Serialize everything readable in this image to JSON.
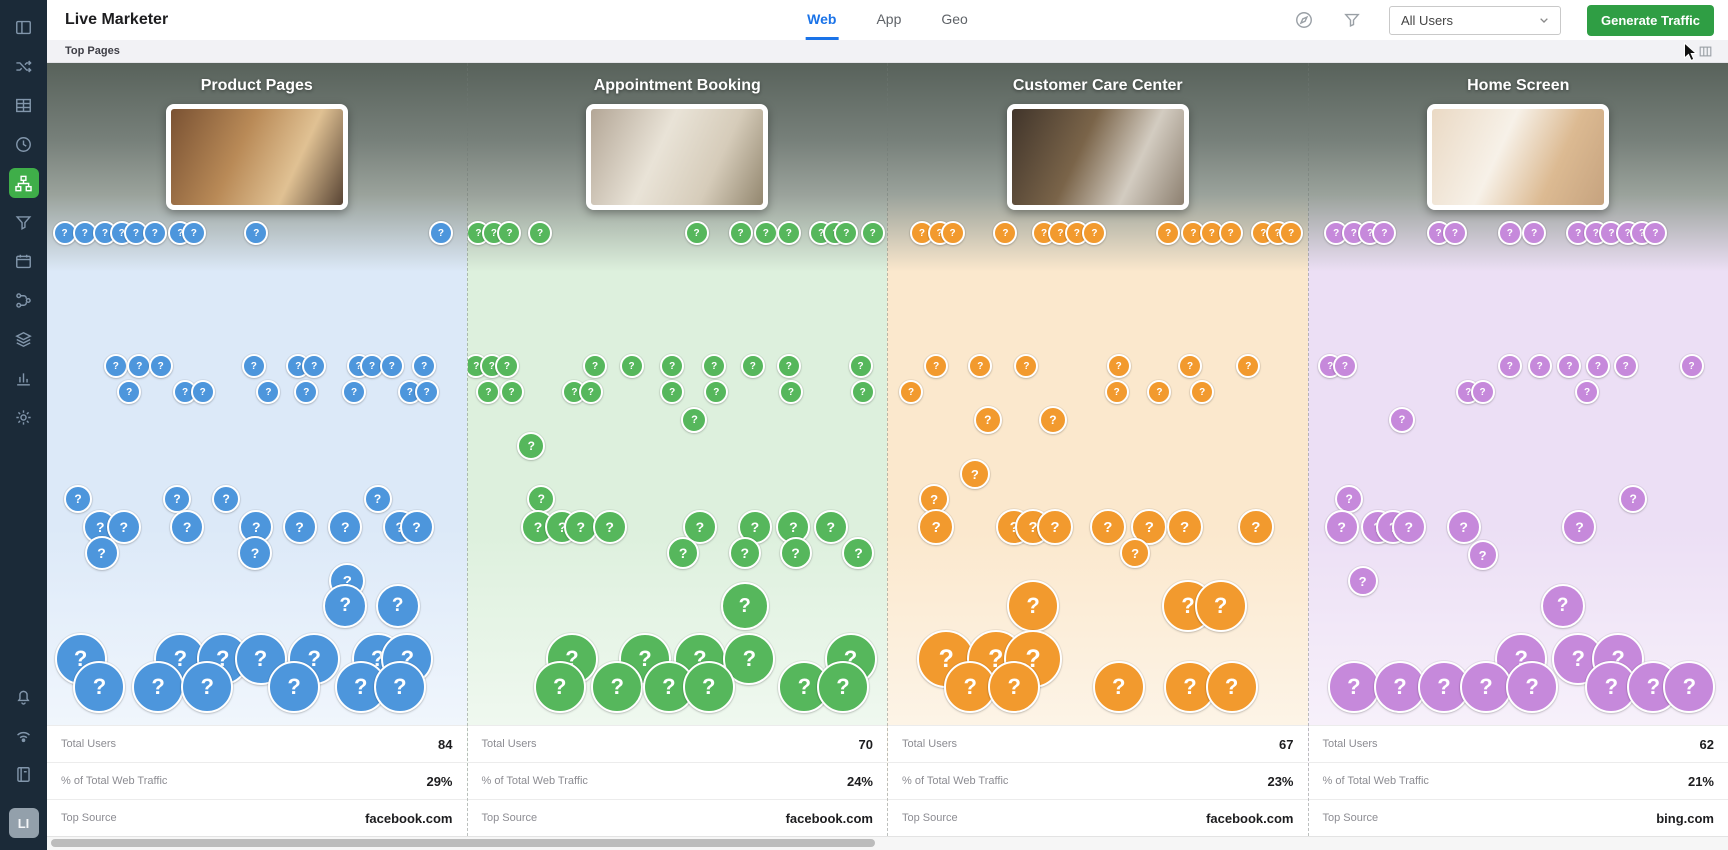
{
  "app": {
    "title": "Live Marketer"
  },
  "topbar": {
    "tabs": [
      {
        "id": "web",
        "label": "Web",
        "active": true
      },
      {
        "id": "app",
        "label": "App",
        "active": false
      },
      {
        "id": "geo",
        "label": "Geo",
        "active": false
      }
    ],
    "audience_dropdown": {
      "value": "All Users"
    },
    "generate_button_label": "Generate Traffic"
  },
  "subheader": {
    "title": "Top Pages"
  },
  "sidebar": {
    "logo_label": "LI",
    "items": [
      {
        "id": "dashboard",
        "icon": "panels",
        "active": false
      },
      {
        "id": "ab-testing",
        "icon": "shuffle",
        "active": false
      },
      {
        "id": "tables",
        "icon": "grid",
        "active": false
      },
      {
        "id": "realtime",
        "icon": "clock",
        "active": false
      },
      {
        "id": "journeys",
        "icon": "sitemap",
        "active": true
      },
      {
        "id": "segments",
        "icon": "funnel",
        "active": false
      },
      {
        "id": "calendar",
        "icon": "calendar",
        "active": false
      },
      {
        "id": "flows",
        "icon": "flow",
        "active": false
      },
      {
        "id": "layers",
        "icon": "layers",
        "active": false
      },
      {
        "id": "analytics",
        "icon": "chart",
        "active": false
      },
      {
        "id": "settings",
        "icon": "gear",
        "active": false
      }
    ],
    "footer_items": [
      {
        "id": "notifications",
        "icon": "bell"
      },
      {
        "id": "connectivity",
        "icon": "signal"
      },
      {
        "id": "directory",
        "icon": "book"
      }
    ]
  },
  "stats_labels": {
    "total_users": "Total Users",
    "traffic": "% of Total Web Traffic",
    "top_source": "Top Source"
  },
  "bubble_glyph": "?",
  "columns": [
    {
      "id": "product-pages",
      "title": "Product Pages",
      "color": "#4D96DC",
      "tint": "#dce9f8",
      "tint_light": "#f2f7fd",
      "preview_colors": [
        "#7a5233",
        "#b98a57",
        "#e0c193",
        "#584434"
      ],
      "stats": {
        "total_users": "84",
        "traffic": "29%",
        "top_source": "facebook.com"
      },
      "bubbles": [
        [
          4.2,
          170,
          12
        ],
        [
          9,
          170,
          12
        ],
        [
          13.8,
          170,
          12
        ],
        [
          17.8,
          170,
          12
        ],
        [
          21.2,
          170,
          12
        ],
        [
          25.7,
          170,
          12
        ],
        [
          31.8,
          170,
          12
        ],
        [
          35,
          170,
          12
        ],
        [
          49.9,
          170,
          12
        ],
        [
          93.9,
          170,
          12
        ],
        [
          16.4,
          303,
          12
        ],
        [
          22,
          303,
          12
        ],
        [
          27.1,
          303,
          12
        ],
        [
          49.3,
          303,
          12
        ],
        [
          59.9,
          303,
          12
        ],
        [
          63.7,
          303,
          12
        ],
        [
          74.3,
          303,
          12
        ],
        [
          77.5,
          303,
          12
        ],
        [
          82.2,
          303,
          12
        ],
        [
          89.9,
          303,
          12
        ],
        [
          19.6,
          329,
          12
        ],
        [
          32.9,
          329,
          12
        ],
        [
          37.1,
          329,
          12
        ],
        [
          52.8,
          329,
          12
        ],
        [
          61.8,
          329,
          12
        ],
        [
          73.2,
          329,
          12
        ],
        [
          86.5,
          329,
          12
        ],
        [
          90.5,
          329,
          12
        ],
        [
          7.4,
          436,
          14
        ],
        [
          31,
          436,
          14
        ],
        [
          42.7,
          436,
          14
        ],
        [
          78.8,
          436,
          14
        ],
        [
          12.7,
          464,
          17
        ],
        [
          18.3,
          464,
          17
        ],
        [
          33.4,
          464,
          17
        ],
        [
          49.9,
          464,
          17
        ],
        [
          60.2,
          464,
          17
        ],
        [
          71.1,
          464,
          17
        ],
        [
          84.1,
          464,
          17
        ],
        [
          88.1,
          464,
          17
        ],
        [
          13,
          490,
          17
        ],
        [
          49.6,
          490,
          17
        ],
        [
          71.6,
          518,
          18
        ],
        [
          71.1,
          543,
          22
        ],
        [
          83.6,
          543,
          22
        ],
        [
          8,
          596,
          26
        ],
        [
          31.8,
          596,
          26
        ],
        [
          41.9,
          596,
          26
        ],
        [
          50.9,
          596,
          26
        ],
        [
          63.7,
          596,
          26
        ],
        [
          78.8,
          596,
          26
        ],
        [
          85.9,
          596,
          26
        ],
        [
          12.5,
          624,
          26
        ],
        [
          26.5,
          624,
          26
        ],
        [
          38.2,
          624,
          26
        ],
        [
          58.9,
          624,
          26
        ],
        [
          74.8,
          624,
          26
        ],
        [
          84.1,
          624,
          26
        ]
      ]
    },
    {
      "id": "appointment-booking",
      "title": "Appointment Booking",
      "color": "#56B75C",
      "tint": "#ddf0dd",
      "tint_light": "#f1f9f1",
      "preview_colors": [
        "#b3a696",
        "#e9e3d7",
        "#d6ccba",
        "#93876f"
      ],
      "stats": {
        "total_users": "70",
        "traffic": "24%",
        "top_source": "facebook.com"
      },
      "bubbles": [
        [
          2.6,
          170,
          12
        ],
        [
          6.3,
          170,
          12
        ],
        [
          10,
          170,
          12
        ],
        [
          17.3,
          170,
          12
        ],
        [
          54.6,
          170,
          12
        ],
        [
          65.1,
          170,
          12
        ],
        [
          71.1,
          170,
          12
        ],
        [
          76.6,
          170,
          12
        ],
        [
          84.3,
          170,
          12
        ],
        [
          87.7,
          170,
          12
        ],
        [
          90.3,
          170,
          12
        ],
        [
          96.6,
          170,
          12
        ],
        [
          2.1,
          303,
          12
        ],
        [
          5.8,
          303,
          12
        ],
        [
          9.4,
          303,
          12
        ],
        [
          30.4,
          303,
          12
        ],
        [
          39.1,
          303,
          12
        ],
        [
          48.8,
          303,
          12
        ],
        [
          58.8,
          303,
          12
        ],
        [
          68,
          303,
          12
        ],
        [
          76.6,
          303,
          12
        ],
        [
          93.7,
          303,
          12
        ],
        [
          5,
          329,
          12
        ],
        [
          10.5,
          329,
          12
        ],
        [
          25.5,
          329,
          12
        ],
        [
          29.4,
          329,
          12
        ],
        [
          48.8,
          329,
          12
        ],
        [
          59.3,
          329,
          12
        ],
        [
          77.1,
          329,
          12
        ],
        [
          94.2,
          329,
          12
        ],
        [
          54.1,
          357,
          13
        ],
        [
          15.2,
          383,
          14
        ],
        [
          17.6,
          436,
          14
        ],
        [
          16.8,
          464,
          17
        ],
        [
          22.6,
          464,
          17
        ],
        [
          27,
          464,
          17
        ],
        [
          33.9,
          464,
          17
        ],
        [
          55.4,
          464,
          17
        ],
        [
          68.5,
          464,
          17
        ],
        [
          77.7,
          464,
          17
        ],
        [
          86.6,
          464,
          17
        ],
        [
          51.4,
          490,
          16
        ],
        [
          66.1,
          490,
          16
        ],
        [
          78.2,
          490,
          16
        ],
        [
          93.2,
          490,
          16
        ],
        [
          66.1,
          543,
          24
        ],
        [
          24.9,
          596,
          26
        ],
        [
          42.3,
          596,
          26
        ],
        [
          55.4,
          596,
          26
        ],
        [
          67.2,
          596,
          26
        ],
        [
          91.3,
          596,
          26
        ],
        [
          22,
          624,
          26
        ],
        [
          35.7,
          624,
          26
        ],
        [
          48,
          624,
          26
        ],
        [
          57.5,
          624,
          26
        ],
        [
          80.3,
          624,
          26
        ],
        [
          89.5,
          624,
          26
        ]
      ]
    },
    {
      "id": "customer-care-center",
      "title": "Customer Care Center",
      "color": "#F29A2E",
      "tint": "#fbe8cd",
      "tint_light": "#fdf5e9",
      "preview_colors": [
        "#41352b",
        "#7a6449",
        "#d3ccc1",
        "#8d8070"
      ],
      "stats": {
        "total_users": "67",
        "traffic": "23%",
        "top_source": "facebook.com"
      },
      "bubbles": [
        [
          8.1,
          170,
          12
        ],
        [
          12.3,
          170,
          12
        ],
        [
          15.4,
          170,
          12
        ],
        [
          28,
          170,
          12
        ],
        [
          37.2,
          170,
          12
        ],
        [
          41.1,
          170,
          12
        ],
        [
          45,
          170,
          12
        ],
        [
          49.2,
          170,
          12
        ],
        [
          66.8,
          170,
          12
        ],
        [
          72.8,
          170,
          12
        ],
        [
          77.2,
          170,
          12
        ],
        [
          81.7,
          170,
          12
        ],
        [
          89.5,
          170,
          12
        ],
        [
          92.9,
          170,
          12
        ],
        [
          96.1,
          170,
          12
        ],
        [
          11.5,
          303,
          12
        ],
        [
          22,
          303,
          12
        ],
        [
          33,
          303,
          12
        ],
        [
          55,
          303,
          12
        ],
        [
          72,
          303,
          12
        ],
        [
          85.9,
          303,
          12
        ],
        [
          5.5,
          329,
          12
        ],
        [
          54.5,
          329,
          12
        ],
        [
          64.7,
          329,
          12
        ],
        [
          74.9,
          329,
          12
        ],
        [
          23.8,
          357,
          14
        ],
        [
          39.3,
          357,
          14
        ],
        [
          20.7,
          411,
          15
        ],
        [
          11,
          436,
          15
        ],
        [
          11.5,
          464,
          18
        ],
        [
          30.1,
          464,
          18
        ],
        [
          34.6,
          464,
          18
        ],
        [
          39.8,
          464,
          18
        ],
        [
          52.4,
          464,
          18
        ],
        [
          62.3,
          464,
          18
        ],
        [
          70.7,
          464,
          18
        ],
        [
          87.7,
          464,
          18
        ],
        [
          58.9,
          490,
          15
        ],
        [
          34.6,
          543,
          26
        ],
        [
          71.5,
          543,
          26
        ],
        [
          79.3,
          543,
          26
        ],
        [
          13.9,
          596,
          29
        ],
        [
          25.7,
          596,
          29
        ],
        [
          34.6,
          596,
          29
        ],
        [
          19.6,
          624,
          26
        ],
        [
          30.1,
          624,
          26
        ],
        [
          55,
          624,
          26
        ],
        [
          72,
          624,
          26
        ],
        [
          81.9,
          624,
          26
        ]
      ]
    },
    {
      "id": "home-screen",
      "title": "Home Screen",
      "color": "#C689DB",
      "tint": "#ecdff5",
      "tint_light": "#f8f2fb",
      "preview_colors": [
        "#ead9c4",
        "#f7f1e8",
        "#dcba92",
        "#c6a37f"
      ],
      "stats": {
        "total_users": "62",
        "traffic": "21%",
        "top_source": "bing.com"
      },
      "bubbles": [
        [
          6.6,
          170,
          12
        ],
        [
          10.8,
          170,
          12
        ],
        [
          14.7,
          170,
          12
        ],
        [
          18.1,
          170,
          12
        ],
        [
          31,
          170,
          12
        ],
        [
          34.9,
          170,
          12
        ],
        [
          48,
          170,
          12
        ],
        [
          53.8,
          170,
          12
        ],
        [
          64.3,
          170,
          12
        ],
        [
          68.5,
          170,
          12
        ],
        [
          72.2,
          170,
          12
        ],
        [
          76.1,
          170,
          12
        ],
        [
          79.5,
          170,
          12
        ],
        [
          82.7,
          170,
          12
        ],
        [
          5.2,
          303,
          12
        ],
        [
          8.7,
          303,
          12
        ],
        [
          48,
          303,
          12
        ],
        [
          55.1,
          303,
          12
        ],
        [
          62.2,
          303,
          12
        ],
        [
          69,
          303,
          12
        ],
        [
          75.6,
          303,
          12
        ],
        [
          91.3,
          303,
          12
        ],
        [
          38.1,
          329,
          12
        ],
        [
          41.5,
          329,
          12
        ],
        [
          66.4,
          329,
          12
        ],
        [
          22.3,
          357,
          13
        ],
        [
          9.7,
          436,
          14
        ],
        [
          77.4,
          436,
          14
        ],
        [
          7.9,
          464,
          17
        ],
        [
          16.5,
          464,
          17
        ],
        [
          20.2,
          464,
          17
        ],
        [
          23.9,
          464,
          17
        ],
        [
          37,
          464,
          17
        ],
        [
          64.6,
          464,
          17
        ],
        [
          41.5,
          492,
          15
        ],
        [
          12.9,
          518,
          15
        ],
        [
          60.6,
          543,
          22
        ],
        [
          50.7,
          596,
          26
        ],
        [
          64.3,
          596,
          26
        ],
        [
          73.8,
          596,
          26
        ],
        [
          10.8,
          624,
          26
        ],
        [
          21.8,
          624,
          26
        ],
        [
          32.3,
          624,
          26
        ],
        [
          42.3,
          624,
          26
        ],
        [
          53.3,
          624,
          26
        ],
        [
          72.2,
          624,
          26
        ],
        [
          82.2,
          624,
          26
        ],
        [
          90.8,
          624,
          26
        ]
      ]
    }
  ]
}
